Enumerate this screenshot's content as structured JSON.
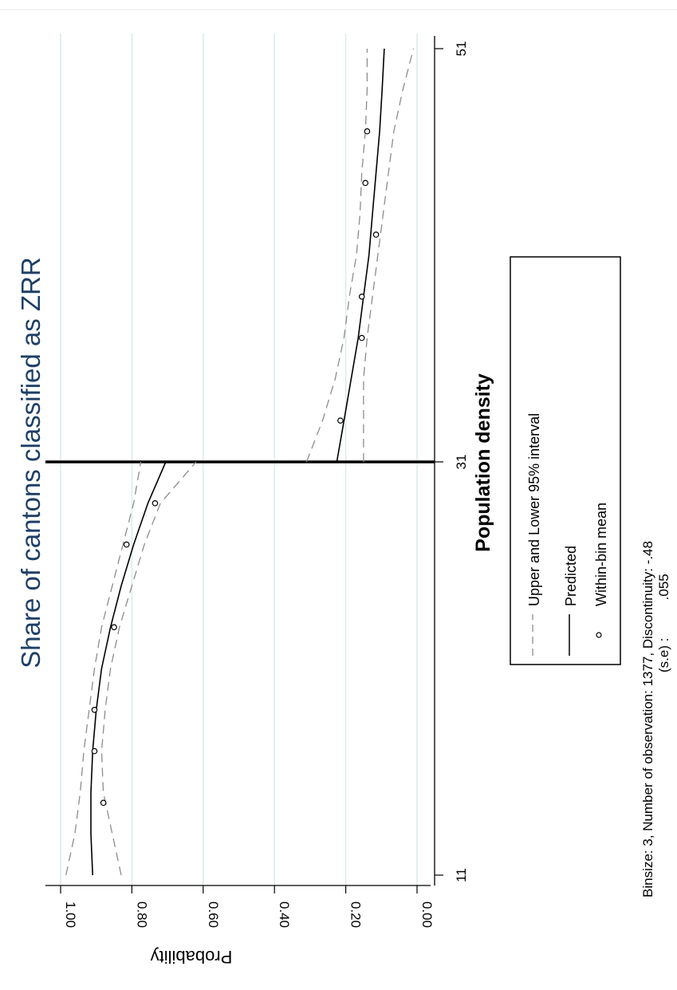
{
  "chart_data": {
    "type": "line",
    "title": "Share of cantons classified as ZRR",
    "xlabel": "Population density",
    "ylabel": "Probability",
    "orientation": "rotated-90-clockwise",
    "xlim": [
      11,
      51
    ],
    "ylim": [
      0,
      1
    ],
    "x_ticks": [
      11,
      31,
      51
    ],
    "x_tick_labels": [
      "11",
      "31",
      "51"
    ],
    "y_ticks": [
      0,
      0.2,
      0.4,
      0.6,
      0.8,
      1.0
    ],
    "y_tick_labels": [
      "0.00",
      "0.20",
      "0.40",
      "0.60",
      "0.80",
      "1.00"
    ],
    "cutoff": 31,
    "grid": true,
    "legend_position": "bottom",
    "legend": [
      {
        "label": "Upper and Lower 95% interval",
        "style": "dashed"
      },
      {
        "label": "Predicted",
        "style": "solid"
      },
      {
        "label": "Within-bin mean",
        "style": "marker"
      }
    ],
    "note_line1": "Binsize: 3, Number of observation: 1377, Discontinuity: -.48",
    "note_line2": "(s.e) :          .055",
    "series": [
      {
        "name": "Predicted",
        "segments": [
          {
            "x": [
              11,
              13,
              15,
              17,
              19,
              21,
              23,
              25,
              27,
              29,
              31
            ],
            "y": [
              0.91,
              0.915,
              0.915,
              0.91,
              0.9,
              0.885,
              0.86,
              0.83,
              0.795,
              0.755,
              0.705
            ]
          },
          {
            "x": [
              31,
              33,
              35,
              37,
              39,
              41,
              43,
              45,
              47,
              49,
              51
            ],
            "y": [
              0.225,
              0.205,
              0.185,
              0.165,
              0.15,
              0.135,
              0.125,
              0.115,
              0.105,
              0.098,
              0.092
            ]
          }
        ]
      },
      {
        "name": "Upper 95% interval",
        "segments": [
          {
            "x": [
              11,
              13,
              15,
              17,
              19,
              21,
              23,
              25,
              27,
              29,
              31
            ],
            "y": [
              0.985,
              0.96,
              0.945,
              0.935,
              0.92,
              0.905,
              0.885,
              0.855,
              0.825,
              0.795,
              0.775
            ]
          },
          {
            "x": [
              31,
              33,
              35,
              37,
              39,
              41,
              43,
              45,
              47,
              49,
              51
            ],
            "y": [
              0.31,
              0.265,
              0.23,
              0.205,
              0.19,
              0.17,
              0.16,
              0.155,
              0.145,
              0.14,
              0.14
            ]
          }
        ]
      },
      {
        "name": "Lower 95% interval",
        "segments": [
          {
            "x": [
              11,
              13,
              15,
              17,
              19,
              21,
              23,
              25,
              27,
              29,
              31
            ],
            "y": [
              0.83,
              0.855,
              0.88,
              0.885,
              0.875,
              0.86,
              0.835,
              0.8,
              0.765,
              0.72,
              0.62
            ]
          },
          {
            "x": [
              31,
              33,
              35,
              37,
              39,
              41,
              43,
              45,
              47,
              49,
              51
            ],
            "y": [
              0.15,
              0.15,
              0.15,
              0.14,
              0.125,
              0.11,
              0.095,
              0.08,
              0.065,
              0.04,
              0.01
            ]
          }
        ]
      }
    ],
    "bin_means": {
      "x": [
        14.5,
        17,
        19,
        23,
        27,
        29,
        33,
        37,
        39,
        42,
        44.5,
        47
      ],
      "y": [
        0.88,
        0.905,
        0.905,
        0.85,
        0.815,
        0.735,
        0.215,
        0.155,
        0.155,
        0.115,
        0.145,
        0.14
      ]
    }
  }
}
